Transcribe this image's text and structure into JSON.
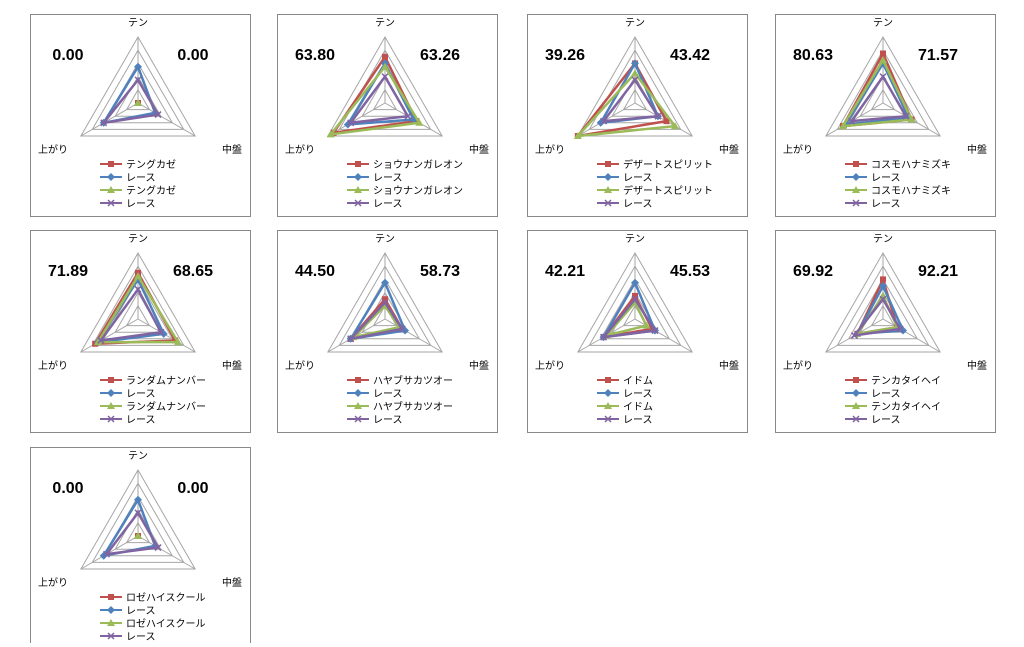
{
  "chart_data": [
    {
      "type": "radar",
      "axes": [
        "テン",
        "中盤",
        "上がり"
      ],
      "annotations": [
        "0.00",
        "0.00"
      ],
      "rlim": [
        0,
        100
      ],
      "rticks": [
        20,
        40,
        60,
        80,
        100
      ],
      "series": [
        {
          "name": "テングカゼ",
          "color": "#c0504d",
          "values": [
            0,
            0,
            0
          ]
        },
        {
          "name": "レース",
          "color": "#4f81bd",
          "values": [
            55,
            30,
            60
          ]
        },
        {
          "name": "テングカゼ",
          "color": "#9bbb59",
          "values": [
            0,
            0,
            0
          ]
        },
        {
          "name": "レース",
          "color": "#8064a2",
          "values": [
            35,
            35,
            60
          ]
        }
      ]
    },
    {
      "type": "radar",
      "axes": [
        "テン",
        "中盤",
        "上がり"
      ],
      "annotations": [
        "63.80",
        "63.26"
      ],
      "rlim": [
        0,
        100
      ],
      "rticks": [
        20,
        40,
        60,
        80,
        100
      ],
      "series": [
        {
          "name": "ショウナンガレオン",
          "color": "#c0504d",
          "values": [
            70,
            55,
            90
          ]
        },
        {
          "name": "レース",
          "color": "#4f81bd",
          "values": [
            60,
            50,
            65
          ]
        },
        {
          "name": "ショウナンガレオン",
          "color": "#9bbb59",
          "values": [
            55,
            60,
            95
          ]
        },
        {
          "name": "レース",
          "color": "#8064a2",
          "values": [
            40,
            40,
            60
          ]
        }
      ]
    },
    {
      "type": "radar",
      "axes": [
        "テン",
        "中盤",
        "上がり"
      ],
      "annotations": [
        "39.26",
        "43.42"
      ],
      "rlim": [
        0,
        100
      ],
      "rticks": [
        20,
        40,
        60,
        80,
        100
      ],
      "series": [
        {
          "name": "デザートスピリット",
          "color": "#c0504d",
          "values": [
            60,
            55,
            100
          ]
        },
        {
          "name": "レース",
          "color": "#4f81bd",
          "values": [
            60,
            40,
            60
          ]
        },
        {
          "name": "デザートスピリット",
          "color": "#9bbb59",
          "values": [
            45,
            70,
            100
          ]
        },
        {
          "name": "レース",
          "color": "#8064a2",
          "values": [
            35,
            40,
            55
          ]
        }
      ]
    },
    {
      "type": "radar",
      "axes": [
        "テン",
        "中盤",
        "上がり"
      ],
      "annotations": [
        "80.63",
        "71.57"
      ],
      "rlim": [
        0,
        100
      ],
      "rticks": [
        20,
        40,
        60,
        80,
        100
      ],
      "series": [
        {
          "name": "コスモハナミズキ",
          "color": "#c0504d",
          "values": [
            75,
            50,
            70
          ]
        },
        {
          "name": "レース",
          "color": "#4f81bd",
          "values": [
            60,
            45,
            65
          ]
        },
        {
          "name": "コスモハナミズキ",
          "color": "#9bbb59",
          "values": [
            65,
            50,
            70
          ]
        },
        {
          "name": "レース",
          "color": "#8064a2",
          "values": [
            40,
            40,
            55
          ]
        }
      ]
    },
    {
      "type": "radar",
      "axes": [
        "テン",
        "中盤",
        "上がり"
      ],
      "annotations": [
        "71.89",
        "68.65"
      ],
      "rlim": [
        0,
        100
      ],
      "rticks": [
        20,
        40,
        60,
        80,
        100
      ],
      "series": [
        {
          "name": "ランダムナンバー",
          "color": "#c0504d",
          "values": [
            70,
            65,
            75
          ]
        },
        {
          "name": "レース",
          "color": "#4f81bd",
          "values": [
            60,
            45,
            70
          ]
        },
        {
          "name": "ランダムナンバー",
          "color": "#9bbb59",
          "values": [
            65,
            70,
            70
          ]
        },
        {
          "name": "レース",
          "color": "#8064a2",
          "values": [
            45,
            40,
            65
          ]
        }
      ]
    },
    {
      "type": "radar",
      "axes": [
        "テン",
        "中盤",
        "上がり"
      ],
      "annotations": [
        "44.50",
        "58.73"
      ],
      "rlim": [
        0,
        100
      ],
      "rticks": [
        20,
        40,
        60,
        80,
        100
      ],
      "series": [
        {
          "name": "ハヤブサカツオー",
          "color": "#c0504d",
          "values": [
            30,
            30,
            60
          ]
        },
        {
          "name": "レース",
          "color": "#4f81bd",
          "values": [
            55,
            35,
            60
          ]
        },
        {
          "name": "ハヤブサカツオー",
          "color": "#9bbb59",
          "values": [
            20,
            25,
            55
          ]
        },
        {
          "name": "レース",
          "color": "#8064a2",
          "values": [
            25,
            30,
            60
          ]
        }
      ]
    },
    {
      "type": "radar",
      "axes": [
        "テン",
        "中盤",
        "上がり"
      ],
      "annotations": [
        "42.21",
        "45.53"
      ],
      "rlim": [
        0,
        100
      ],
      "rticks": [
        20,
        40,
        60,
        80,
        100
      ],
      "series": [
        {
          "name": "イドム",
          "color": "#c0504d",
          "values": [
            35,
            30,
            55
          ]
        },
        {
          "name": "レース",
          "color": "#4f81bd",
          "values": [
            55,
            35,
            55
          ]
        },
        {
          "name": "イドム",
          "color": "#9bbb59",
          "values": [
            25,
            20,
            50
          ]
        },
        {
          "name": "レース",
          "color": "#8064a2",
          "values": [
            30,
            35,
            55
          ]
        }
      ]
    },
    {
      "type": "radar",
      "axes": [
        "テン",
        "中盤",
        "上がり"
      ],
      "annotations": [
        "69.92",
        "92.21"
      ],
      "rlim": [
        0,
        100
      ],
      "rticks": [
        20,
        40,
        60,
        80,
        100
      ],
      "series": [
        {
          "name": "テンカタイヘイ",
          "color": "#c0504d",
          "values": [
            60,
            25,
            45
          ]
        },
        {
          "name": "レース",
          "color": "#4f81bd",
          "values": [
            50,
            35,
            45
          ]
        },
        {
          "name": "テンカタイヘイ",
          "color": "#9bbb59",
          "values": [
            35,
            25,
            45
          ]
        },
        {
          "name": "レース",
          "color": "#8064a2",
          "values": [
            30,
            30,
            50
          ]
        }
      ]
    },
    {
      "type": "radar",
      "axes": [
        "テン",
        "中盤",
        "上がり"
      ],
      "annotations": [
        "0.00",
        "0.00"
      ],
      "rlim": [
        0,
        100
      ],
      "rticks": [
        20,
        40,
        60,
        80,
        100
      ],
      "series": [
        {
          "name": "ロゼハイスクール",
          "color": "#c0504d",
          "values": [
            0,
            0,
            0
          ]
        },
        {
          "name": "レース",
          "color": "#4f81bd",
          "values": [
            55,
            30,
            60
          ]
        },
        {
          "name": "ロゼハイスクール",
          "color": "#9bbb59",
          "values": [
            0,
            0,
            0
          ]
        },
        {
          "name": "レース",
          "color": "#8064a2",
          "values": [
            35,
            35,
            55
          ]
        }
      ]
    }
  ]
}
